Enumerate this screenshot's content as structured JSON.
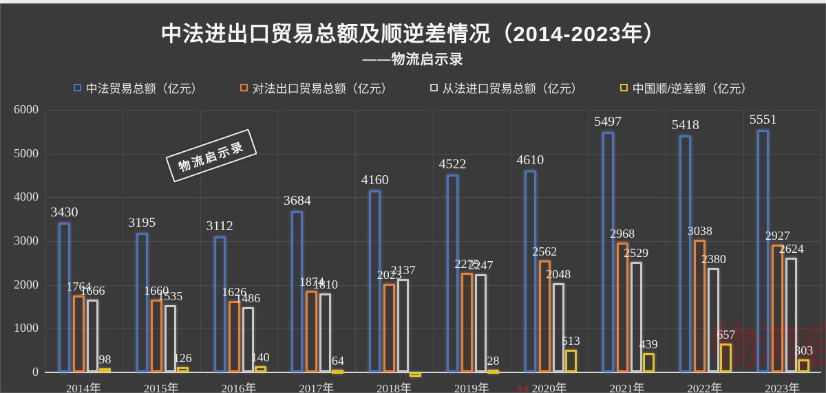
{
  "header": {
    "title": "中法进出口贸易总额及顺逆差情况（2014-2023年）",
    "subtitle": "——物流启示录"
  },
  "watermark": {
    "stamp_text": "物流启示录"
  },
  "colors": {
    "background": "#3a3a3a",
    "gridline": "#4b4b4b",
    "axis": "#d7d7d7",
    "blue": "#4472C4",
    "orange": "#ED7D31",
    "gray": "#C9C9C9",
    "yellow": "#E6C31C"
  },
  "legend": [
    {
      "key": "total",
      "label": "中法贸易总额（亿元）",
      "color": "#4472C4"
    },
    {
      "key": "export",
      "label": "对法出口贸易总额（亿元）",
      "color": "#ED7D31"
    },
    {
      "key": "import",
      "label": "从法进口贸易总额（亿元）",
      "color": "#C9C9C9"
    },
    {
      "key": "balance",
      "label": "中国顺/逆差额（亿元）",
      "color": "#E6C31C"
    }
  ],
  "chart_data": {
    "type": "bar",
    "title": "中法进出口贸易总额及顺逆差情况（2014-2023年）",
    "subtitle": "——物流启示录",
    "categories": [
      "2014年",
      "2015年",
      "2016年",
      "2017年",
      "2018年",
      "2019年",
      "2020年",
      "2021年",
      "2022年",
      "2023年"
    ],
    "series": [
      {
        "key": "total",
        "name": "中法贸易总额（亿元）",
        "color": "#4472C4",
        "values": [
          3430,
          3195,
          3112,
          3684,
          4160,
          4522,
          4610,
          5497,
          5418,
          5551
        ],
        "labels": [
          "3430",
          "3195",
          "3112",
          "3684",
          "4160",
          "4522",
          "4610",
          "5497",
          "5418",
          "5551"
        ]
      },
      {
        "key": "export",
        "name": "对法出口贸易总额（亿元）",
        "color": "#ED7D31",
        "values": [
          1764,
          1660,
          1626,
          1874,
          2023,
          2275,
          2562,
          2968,
          3038,
          2927
        ],
        "labels": [
          "1764",
          "1660",
          "1626",
          "1874",
          "2023",
          "2275",
          "2562",
          "2968",
          "3038",
          "2927"
        ]
      },
      {
        "key": "import",
        "name": "从法进口贸易总额（亿元）",
        "color": "#C9C9C9",
        "values": [
          1666,
          1535,
          1486,
          1810,
          2137,
          2247,
          2048,
          2529,
          2380,
          2624
        ],
        "labels": [
          "1666",
          "1535",
          "1486",
          "1810",
          "2137",
          "2247",
          "2048",
          "2529",
          "2380",
          "2624"
        ]
      },
      {
        "key": "balance",
        "name": "中国顺/逆差额（亿元）",
        "color": "#E6C31C",
        "values": [
          98,
          126,
          140,
          64,
          -114,
          28,
          513,
          439,
          657,
          303
        ],
        "labels": [
          "98",
          "126",
          "140",
          "64",
          "",
          "28",
          "513",
          "439",
          "657",
          "303"
        ]
      }
    ],
    "ylim": [
      0,
      6000
    ],
    "yticks": [
      0,
      1000,
      2000,
      3000,
      4000,
      5000,
      6000
    ],
    "grid": true,
    "legend_position": "top"
  }
}
